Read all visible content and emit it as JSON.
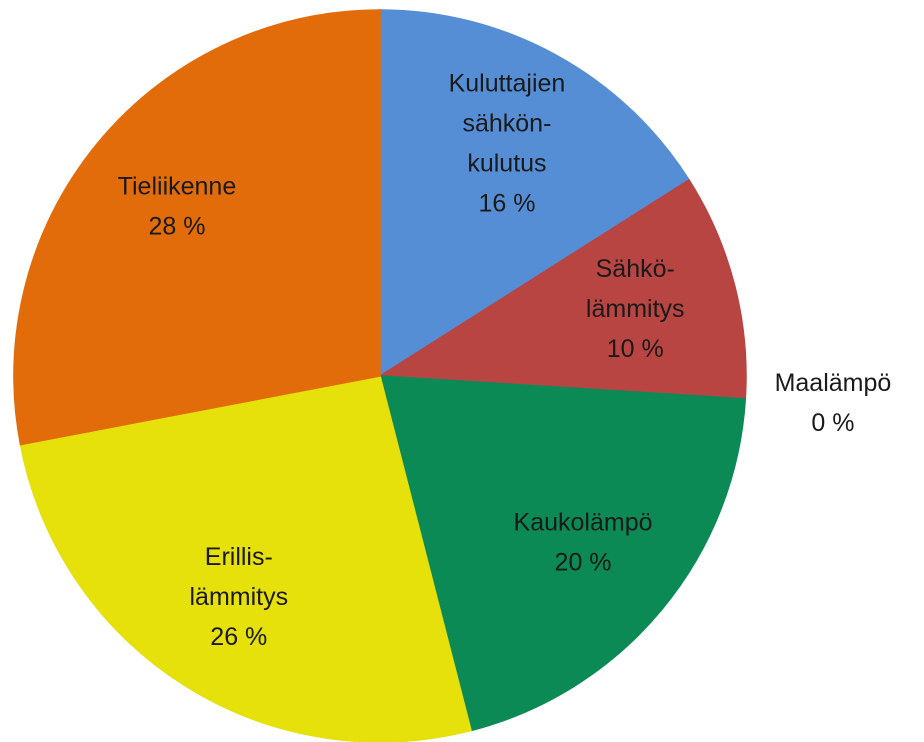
{
  "chart_data": {
    "type": "pie",
    "categories": [
      [
        "Kuluttajien",
        "sähkön-",
        "kulutus"
      ],
      [
        "Sähkö-",
        "lämmitys"
      ],
      [
        "Maalämpö"
      ],
      [
        "Kaukolämpö"
      ],
      [
        "Erillis-",
        "lämmitys"
      ],
      [
        "Tieliikenne"
      ]
    ],
    "values": [
      16,
      10,
      0,
      20,
      26,
      28
    ],
    "value_labels": [
      "16 %",
      "10 %",
      "0 %",
      "20 %",
      "26 %",
      "28 %"
    ],
    "colors": [
      "#558ed5",
      "#b84542",
      "#7a52a0",
      "#0b8a55",
      "#e6e00b",
      "#e36c0a"
    ]
  }
}
